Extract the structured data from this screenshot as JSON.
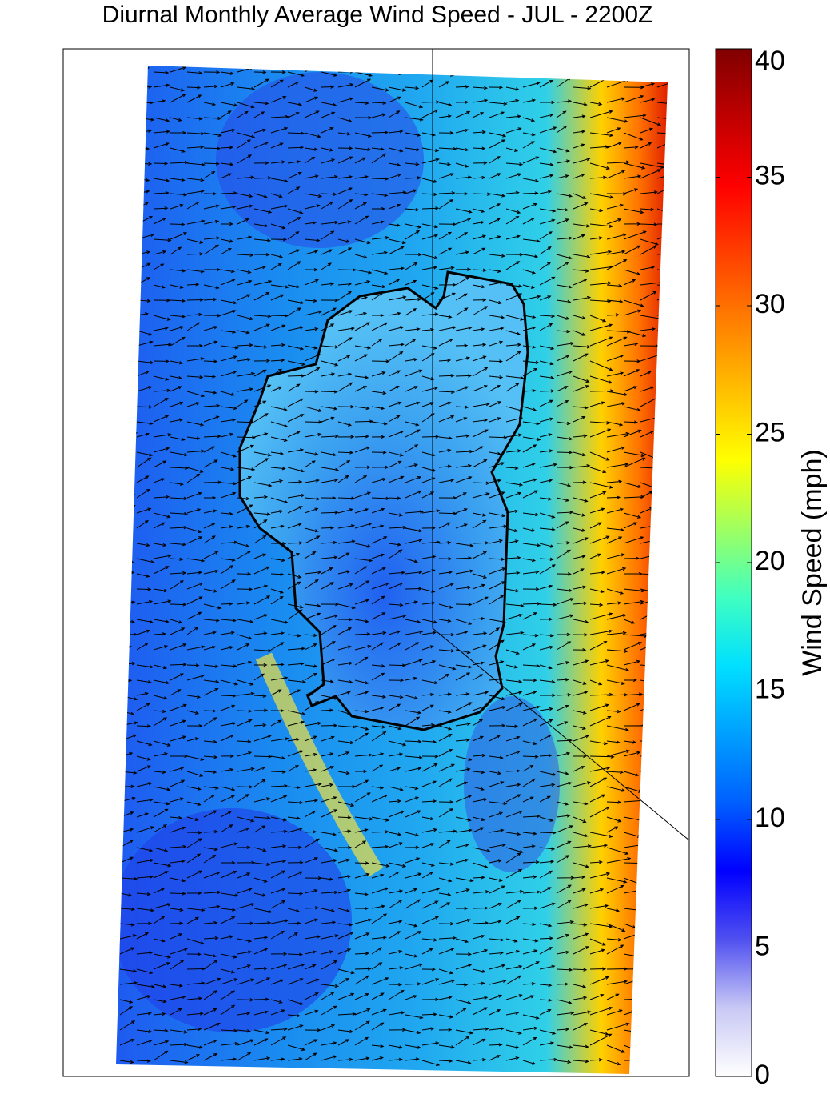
{
  "chart_data": {
    "type": "map",
    "title": "Diurnal Monthly Average Wind Speed - JUL - 2200Z",
    "colorbar": {
      "label": "Wind Speed (mph)",
      "lim": [
        0,
        40
      ],
      "ticks": [
        0,
        5,
        10,
        15,
        20,
        25,
        30,
        35,
        40
      ],
      "colormap": [
        "#ffffff",
        "#c8c8f5",
        "#5050f0",
        "#0000ff",
        "#0060ff",
        "#00a0ff",
        "#00e0ff",
        "#40ffc0",
        "#a0ff60",
        "#ffff00",
        "#ffc000",
        "#ff8000",
        "#ff4000",
        "#ff0000",
        "#c00000",
        "#800000"
      ]
    }
  }
}
